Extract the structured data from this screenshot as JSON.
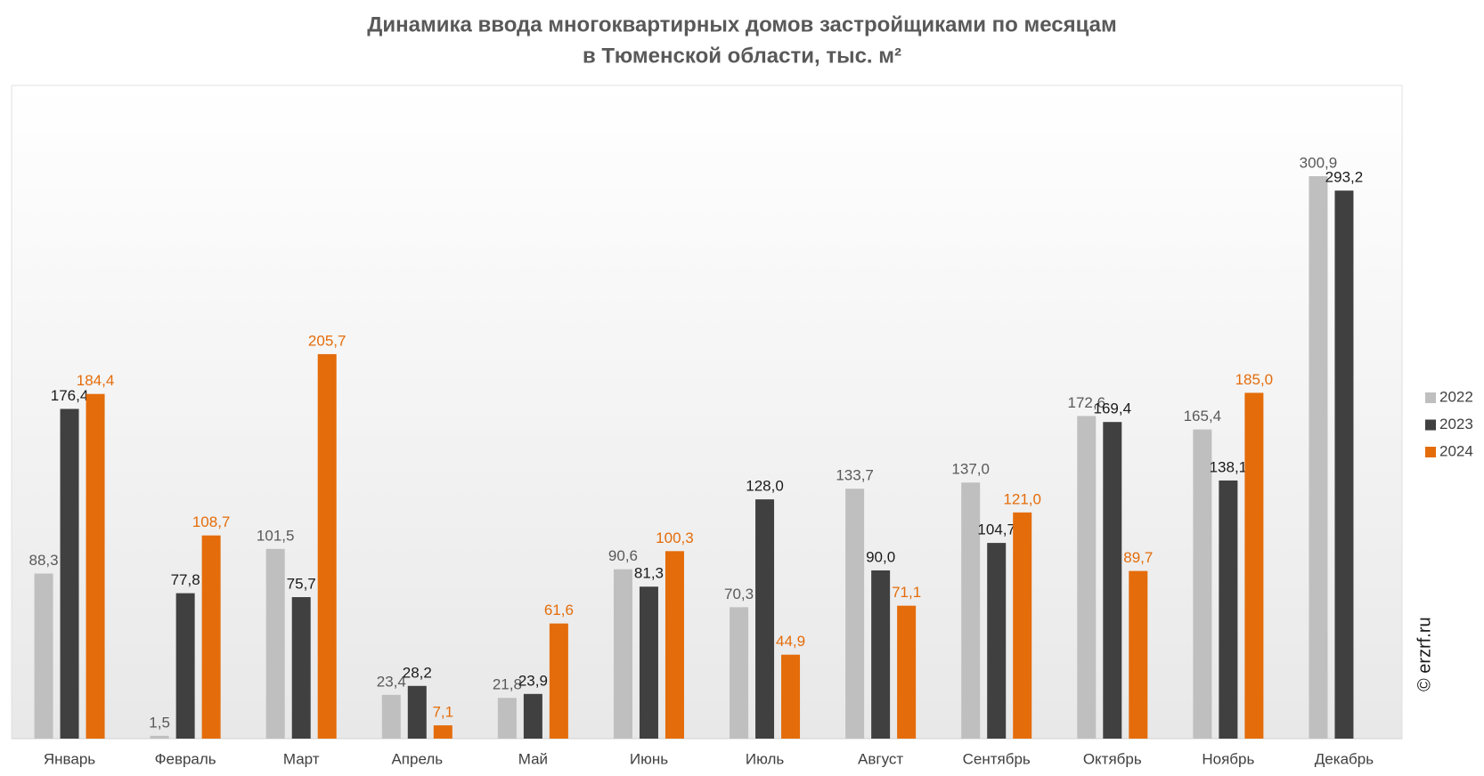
{
  "chart_data": {
    "type": "bar",
    "title": [
      "Динамика ввода многоквартирных домов застройщиками по месяцам",
      "в Тюменской области, тыс. м²"
    ],
    "categories": [
      "Январь",
      "Февраль",
      "Март",
      "Апрель",
      "Май",
      "Июнь",
      "Июль",
      "Август",
      "Сентябрь",
      "Октябрь",
      "Ноябрь",
      "Декабрь"
    ],
    "series": [
      {
        "name": "2022",
        "color": "#bfbfbf",
        "label_color": "#595959",
        "values": [
          88.3,
          1.5,
          101.5,
          23.4,
          21.8,
          90.6,
          70.3,
          133.7,
          137.0,
          172.6,
          165.4,
          300.9
        ],
        "value_labels": [
          "88,3",
          "1,5",
          "101,5",
          "23,4",
          "21,8",
          "90,6",
          "70,3",
          "133,7",
          "137,0",
          "172,6",
          "165,4",
          "300,9"
        ]
      },
      {
        "name": "2023",
        "color": "#404040",
        "label_color": "#1a1a1a",
        "values": [
          176.4,
          77.8,
          75.7,
          28.2,
          23.9,
          81.3,
          128.0,
          90.0,
          104.7,
          169.4,
          138.1,
          293.2
        ],
        "value_labels": [
          "176,4",
          "77,8",
          "75,7",
          "28,2",
          "23,9",
          "81,3",
          "128,0",
          "90,0",
          "104,7",
          "169,4",
          "138,1",
          "293,2"
        ]
      },
      {
        "name": "2024",
        "color": "#e46c0a",
        "label_color": "#e46c0a",
        "values": [
          184.4,
          108.7,
          205.7,
          7.1,
          61.6,
          100.3,
          44.9,
          71.1,
          121.0,
          89.7,
          185.0,
          null
        ],
        "value_labels": [
          "184,4",
          "108,7",
          "205,7",
          "7,1",
          "61,6",
          "100,3",
          "44,9",
          "71,1",
          "121,0",
          "89,7",
          "185,0",
          null
        ]
      }
    ],
    "legend": "right",
    "watermark": "© erzrf.ru"
  }
}
